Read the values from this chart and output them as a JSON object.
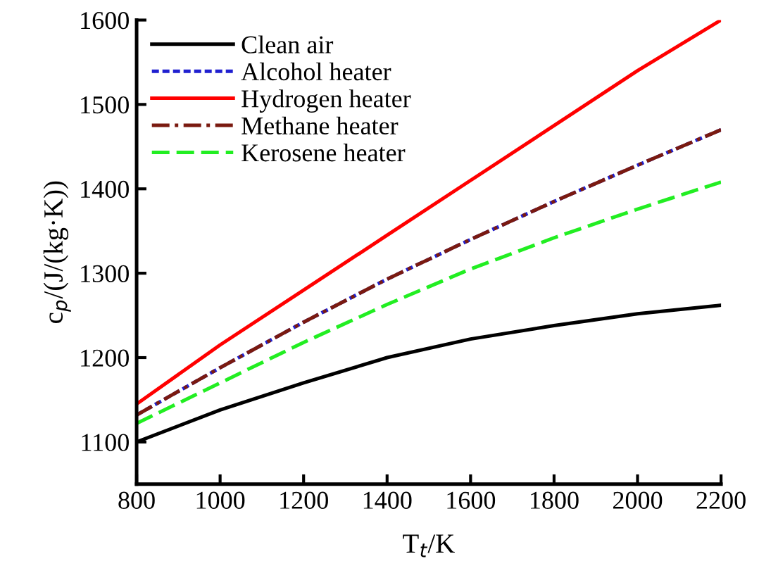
{
  "chart_data": {
    "type": "line",
    "xlabel": "T$_{t}$/K",
    "ylabel": "c$_{p}$/(J/(kg·K))",
    "x": [
      800,
      1000,
      1200,
      1400,
      1600,
      1800,
      2000,
      2200
    ],
    "series": [
      {
        "name": "Clean air",
        "color": "#000000",
        "line_style": "solid",
        "values": [
          1100,
          1138,
          1170,
          1200,
          1222,
          1238,
          1252,
          1262
        ]
      },
      {
        "name": "Alcohol heater",
        "color": "#2020d0",
        "line_style": "dotted",
        "values": [
          1132,
          1188,
          1242,
          1293,
          1340,
          1385,
          1428,
          1470
        ]
      },
      {
        "name": "Hydrogen heater",
        "color": "#ff0000",
        "line_style": "solid",
        "values": [
          1145,
          1215,
          1280,
          1345,
          1410,
          1475,
          1540,
          1600
        ]
      },
      {
        "name": "Methane heater",
        "color": "#7a1a10",
        "line_style": "dashdot",
        "values": [
          1132,
          1188,
          1242,
          1293,
          1340,
          1385,
          1428,
          1470
        ]
      },
      {
        "name": "Kerosene heater",
        "color": "#22ee22",
        "line_style": "dashed",
        "values": [
          1122,
          1170,
          1218,
          1263,
          1305,
          1342,
          1376,
          1408
        ]
      }
    ],
    "xlim": [
      800,
      2200
    ],
    "ylim": [
      1050,
      1600
    ],
    "xticks": [
      800,
      1000,
      1200,
      1400,
      1600,
      1800,
      2000,
      2200
    ],
    "yticks": [
      1100,
      1200,
      1300,
      1400,
      1500,
      1600
    ],
    "grid": false,
    "legend": "top left",
    "marker": "none"
  }
}
